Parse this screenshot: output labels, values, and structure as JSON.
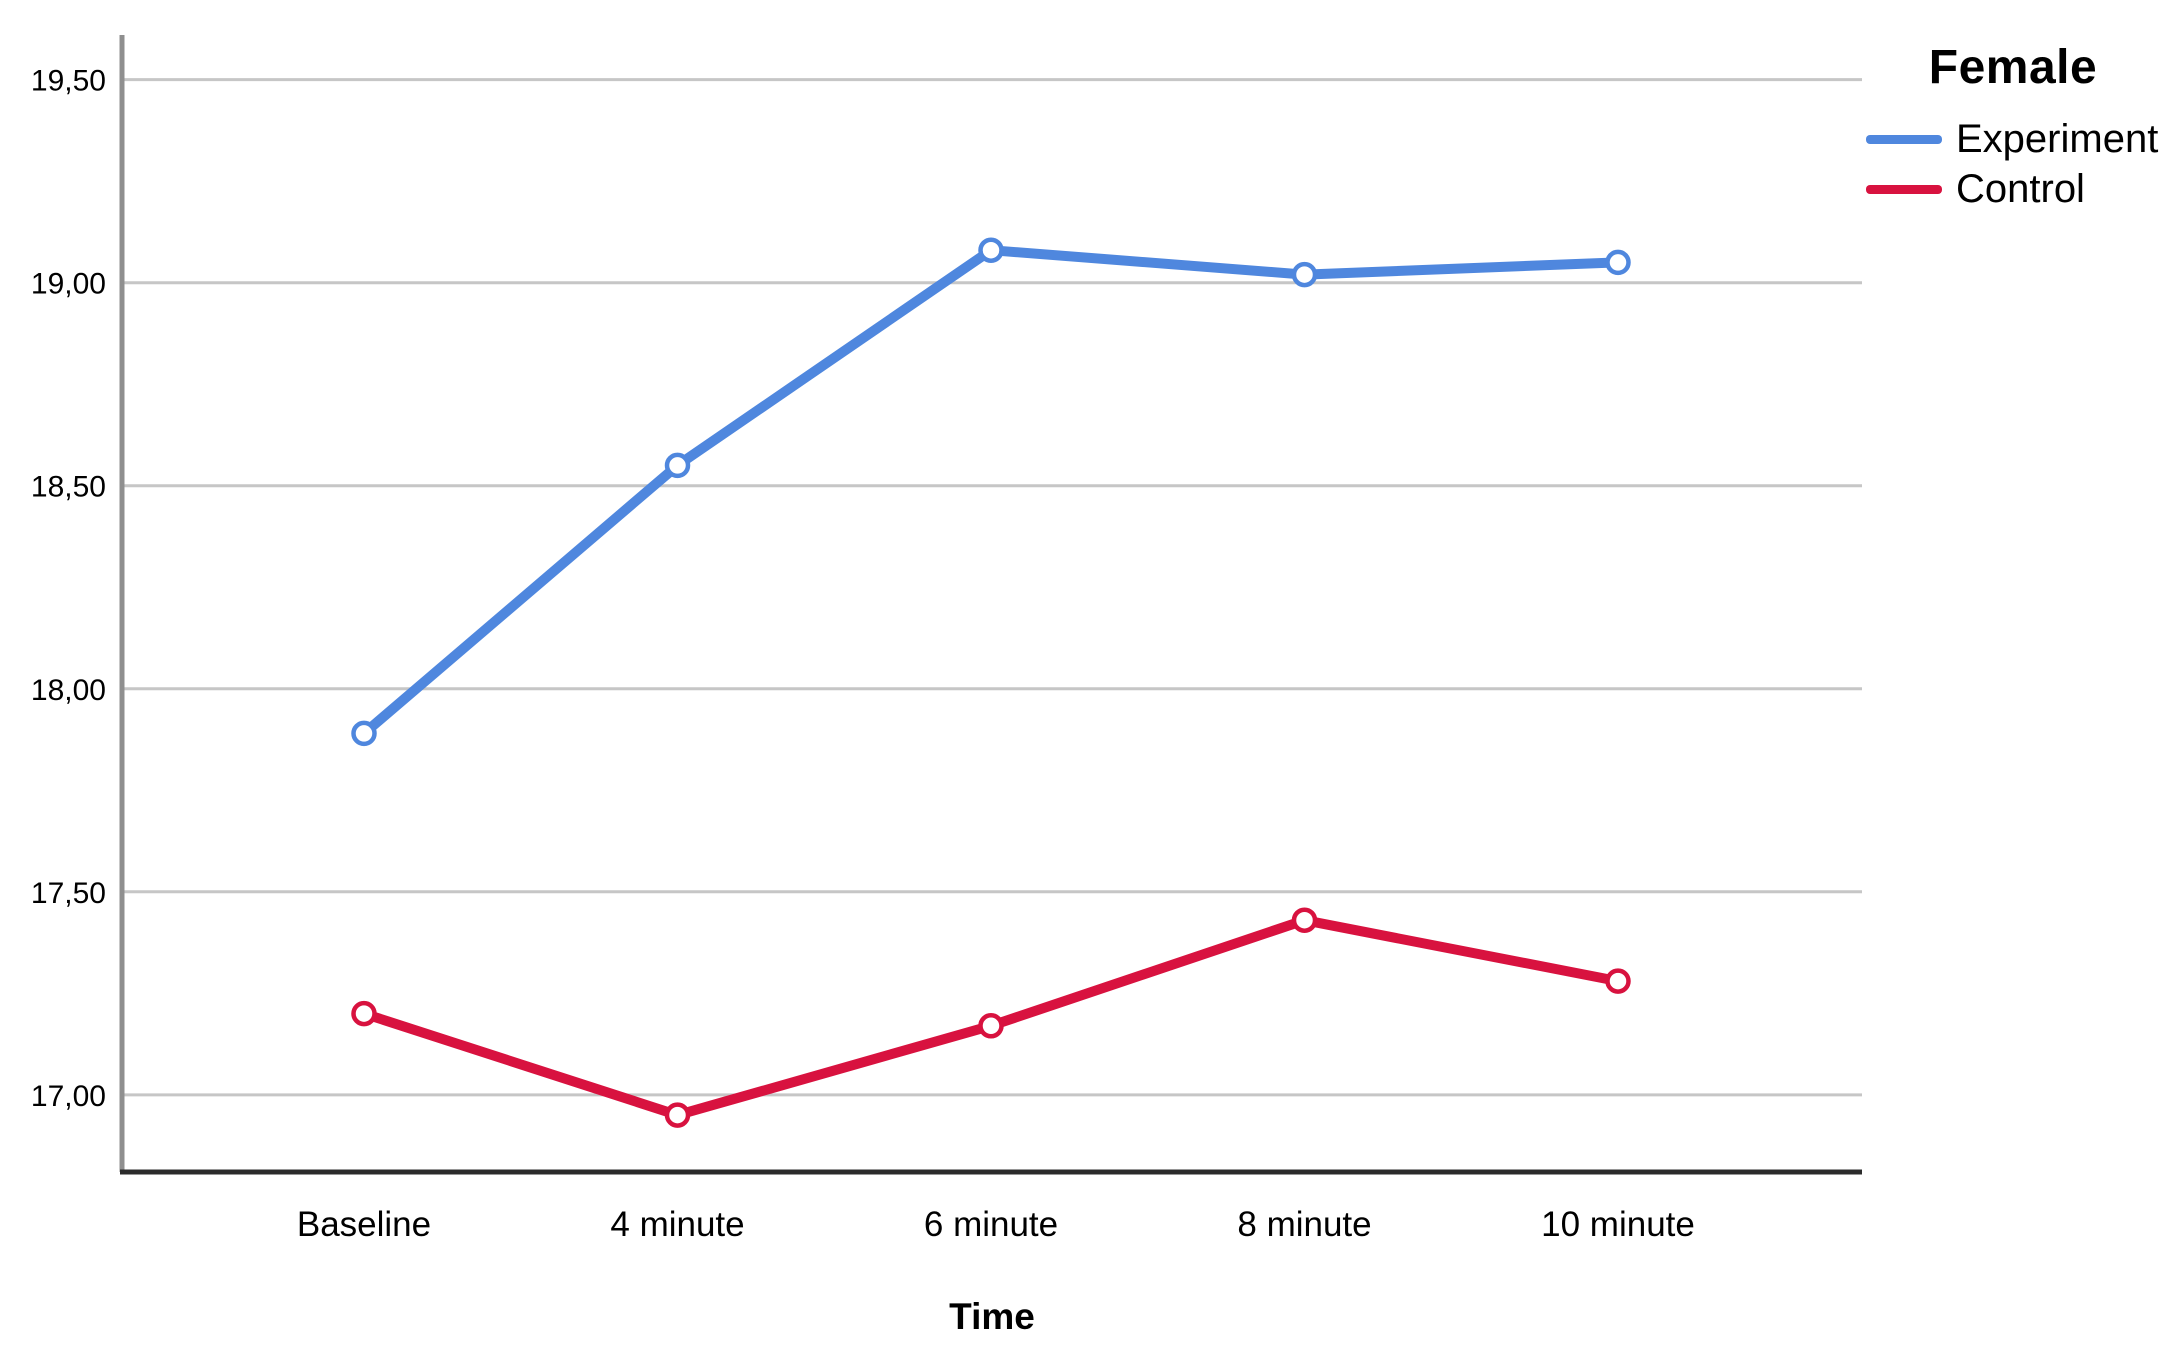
{
  "chart_data": {
    "type": "line",
    "legend_title": "Female",
    "legend_position": "top-right",
    "xlabel": "Time",
    "ylabel": "",
    "categories": [
      "Baseline",
      "4 minute",
      "6 minute",
      "8 minute",
      "10 minute"
    ],
    "series": [
      {
        "name": "Experiment",
        "color": "#4f87de",
        "marker": "open-circle",
        "values": [
          17.89,
          18.55,
          19.08,
          19.02,
          19.05
        ]
      },
      {
        "name": "Control",
        "color": "#d8123f",
        "marker": "open-circle",
        "values": [
          17.2,
          16.95,
          17.17,
          17.43,
          17.28
        ]
      }
    ],
    "y_ticks": [
      {
        "value": 19.5,
        "label": "19,50"
      },
      {
        "value": 19.0,
        "label": "19,00"
      },
      {
        "value": 18.5,
        "label": "18,50"
      },
      {
        "value": 18.0,
        "label": "18,00"
      },
      {
        "value": 17.5,
        "label": "17,50"
      },
      {
        "value": 17.0,
        "label": "17,00"
      }
    ],
    "ylim": [
      16.81,
      19.61
    ],
    "grid": true,
    "decimal_separator": ","
  },
  "colors": {
    "background": "#ffffff",
    "gridline": "#c6c6c6",
    "y_axis_line": "#8f8f8f",
    "x_axis_line": "#2b2b2b",
    "text": "#000000",
    "marker_fill": "#ffffff"
  }
}
